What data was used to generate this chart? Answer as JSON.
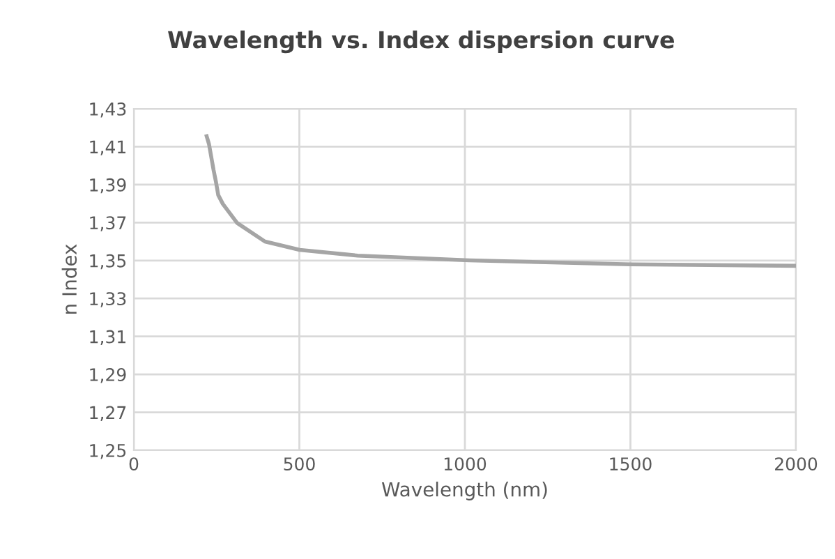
{
  "chart_data": {
    "type": "line",
    "title": "Wavelength vs. Index dispersion curve",
    "xlabel": "Wavelength (nm)",
    "ylabel": "n Index",
    "series": [
      {
        "color": "#a5a5a5",
        "x": [
          220,
          227,
          241,
          248,
          255,
          269,
          312,
          396,
          501,
          676,
          1013,
          1500,
          2000
        ],
        "values": [
          1.4155,
          1.4114,
          1.3976,
          1.3915,
          1.3845,
          1.3798,
          1.3698,
          1.36,
          1.3556,
          1.3526,
          1.3501,
          1.348,
          1.3472
        ]
      }
    ],
    "xlim": [
      0,
      2000
    ],
    "xticks": [
      0,
      500,
      1000,
      1500,
      2000
    ],
    "ylim": [
      1.25,
      1.43
    ],
    "yticks": [
      {
        "value": 1.25,
        "label": "1,25"
      },
      {
        "value": 1.27,
        "label": "1,27"
      },
      {
        "value": 1.29,
        "label": "1,29"
      },
      {
        "value": 1.31,
        "label": "1,31"
      },
      {
        "value": 1.33,
        "label": "1,33"
      },
      {
        "value": 1.35,
        "label": "1,35"
      },
      {
        "value": 1.37,
        "label": "1,37"
      },
      {
        "value": 1.39,
        "label": "1,39"
      },
      {
        "value": 1.41,
        "label": "1,41"
      },
      {
        "value": 1.43,
        "label": "1,43"
      }
    ],
    "grid": true,
    "marker": "none",
    "line_style": "solid"
  }
}
